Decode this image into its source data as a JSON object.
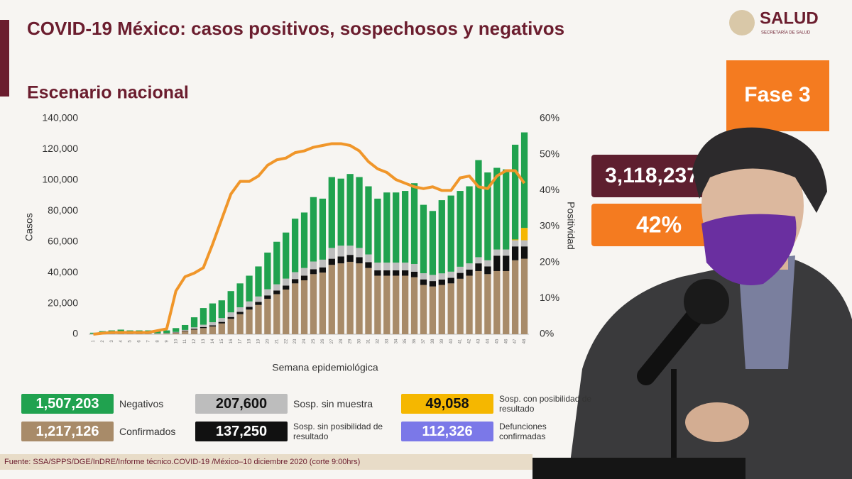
{
  "header": {
    "title": "COVID-19 México: casos positivos, sospechosos y negativos",
    "brand": "SALUD",
    "brand_sub": "SECRETARÍA DE SALUD",
    "phase": "Fase 3",
    "total_tests": "3,118,237",
    "positivity": "42%"
  },
  "source": "Fuente: SSA/SPPS/DGE/InDRE/Informe técnico.COVID-19 /México–10 diciembre 2020 (corte 9:00hrs)",
  "chart_data": {
    "type": "stacked_bar_line",
    "title": "Escenario nacional",
    "x_label": "Semana epidemiológica",
    "y_label": "Casos",
    "y2_label": "Positividad",
    "categories": [
      "1",
      "2",
      "3",
      "4",
      "5",
      "6",
      "7",
      "8",
      "9",
      "10",
      "11",
      "12",
      "13",
      "14",
      "15",
      "16",
      "17",
      "18",
      "19",
      "20",
      "21",
      "22",
      "23",
      "24",
      "25",
      "26",
      "27",
      "28",
      "29",
      "30",
      "31",
      "32",
      "33",
      "34",
      "35",
      "36",
      "37",
      "38",
      "39",
      "40",
      "41",
      "42",
      "43",
      "44",
      "45",
      "46",
      "47",
      "48"
    ],
    "series": [
      {
        "name": "Confirmados",
        "total": "1,217,126",
        "color": "#a88b69",
        "values": [
          100,
          200,
          200,
          300,
          300,
          300,
          400,
          400,
          500,
          1000,
          2000,
          3000,
          4000,
          5000,
          7000,
          10000,
          13000,
          16000,
          19000,
          23000,
          26000,
          29000,
          33000,
          35000,
          39000,
          40000,
          45000,
          46000,
          47000,
          46000,
          43000,
          38000,
          38000,
          38000,
          38000,
          37000,
          32000,
          31000,
          32000,
          33000,
          36000,
          38000,
          41000,
          39000,
          41000,
          41000,
          48000,
          49000
        ]
      },
      {
        "name": "Sosp. sin posibilidad de resultado",
        "total": "137,250",
        "color": "#111111",
        "values": [
          0,
          0,
          0,
          0,
          0,
          0,
          0,
          0,
          0,
          200,
          300,
          500,
          700,
          800,
          1000,
          1200,
          1500,
          1800,
          2000,
          2200,
          2400,
          2600,
          2800,
          3000,
          3200,
          3400,
          4000,
          4500,
          4500,
          4000,
          3800,
          3500,
          3500,
          3500,
          3500,
          3600,
          3600,
          3500,
          3500,
          3600,
          3800,
          4000,
          5000,
          5000,
          10000,
          10000,
          9000,
          8000
        ]
      },
      {
        "name": "Sosp. sin muestra",
        "total": "207,600",
        "color": "#bdbdbd",
        "values": [
          200,
          200,
          200,
          200,
          200,
          200,
          200,
          200,
          200,
          300,
          500,
          1000,
          1500,
          2000,
          2500,
          3000,
          3000,
          3500,
          3500,
          4000,
          4000,
          4500,
          4500,
          5000,
          5000,
          5000,
          7000,
          7000,
          6000,
          6000,
          5000,
          5000,
          5000,
          5000,
          5000,
          5000,
          4000,
          4000,
          4000,
          4000,
          4000,
          4000,
          4000,
          4000,
          4000,
          4000,
          4000,
          4000
        ]
      },
      {
        "name": "Sosp. con posibilidad de resultado",
        "total": "49,058",
        "color": "#f5b700",
        "values": [
          0,
          0,
          0,
          0,
          0,
          0,
          0,
          0,
          0,
          0,
          0,
          0,
          0,
          0,
          0,
          0,
          0,
          0,
          0,
          0,
          0,
          0,
          0,
          0,
          0,
          0,
          0,
          0,
          0,
          0,
          0,
          0,
          0,
          0,
          0,
          0,
          0,
          0,
          0,
          0,
          0,
          0,
          0,
          0,
          0,
          0,
          500,
          8000
        ]
      },
      {
        "name": "Negativos",
        "total": "1,507,203",
        "color": "#20a24f",
        "values": [
          700,
          1600,
          2100,
          2500,
          2000,
          2000,
          1900,
          1900,
          1800,
          2500,
          3200,
          6500,
          10800,
          12200,
          11500,
          13800,
          15500,
          16700,
          19500,
          23800,
          27600,
          29900,
          34700,
          36000,
          41800,
          39600,
          46000,
          43500,
          46500,
          46000,
          44200,
          41500,
          45500,
          45500,
          46500,
          52400,
          44400,
          41500,
          47500,
          49400,
          49200,
          50000,
          63000,
          57000,
          53000,
          52000,
          61500,
          62000
        ]
      },
      {
        "axis": "y2",
        "color": "#f0962a",
        "values": [
          0,
          0.3,
          0.5,
          0.5,
          0.5,
          0.5,
          0.5,
          1,
          1.5,
          12,
          16,
          17,
          18.5,
          25,
          32,
          39,
          42.5,
          42.5,
          44,
          47,
          48.5,
          49,
          50.5,
          51,
          52,
          52.5,
          53,
          53,
          52.5,
          51,
          48,
          46,
          45,
          43,
          42,
          41,
          40.5,
          41,
          40,
          40,
          43.5,
          44,
          41,
          40.5,
          44,
          45.5,
          45.5,
          42
        ]
      }
    ],
    "extra": {
      "name": "Defunciones confirmadas",
      "total": "112,326",
      "color": "#7b78e8"
    },
    "ylim": [
      0,
      140000
    ],
    "yticks": [
      0,
      {
        "value": 20000,
        "label": "20,000"
      },
      {
        "value": 40000,
        "label": "40,000"
      },
      {
        "value": 60000,
        "label": "60,000"
      },
      {
        "value": 80000,
        "label": "80,000"
      },
      {
        "value": 100000,
        "label": "100,000"
      },
      {
        "value": 120000,
        "label": "120,000"
      },
      {
        "value": 140000,
        "label": "140,000"
      }
    ],
    "y2lim": [
      0,
      60
    ],
    "y2ticks": [
      {
        "value": 0,
        "label": "0%"
      },
      {
        "value": 10,
        "label": "10%"
      },
      {
        "value": 20,
        "label": "20%"
      },
      {
        "value": 30,
        "label": "30%"
      },
      {
        "value": 40,
        "label": "40%"
      },
      {
        "value": 50,
        "label": "50%"
      },
      {
        "value": 60,
        "label": "60%"
      }
    ],
    "grid": false
  }
}
